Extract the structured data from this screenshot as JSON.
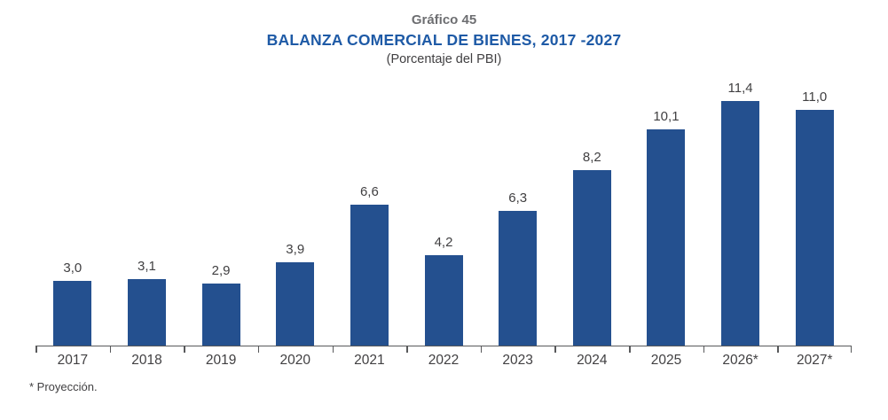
{
  "header": {
    "figure_label": "Gráfico 45",
    "title": "BALANZA COMERCIAL DE BIENES, 2017 -2027",
    "subtitle": "(Porcentaje del PBI)"
  },
  "footnote": "* Proyección.",
  "colors": {
    "bar": "#24508F",
    "title": "#1E5AA6",
    "figure_label": "#6D6E71",
    "text": "#414042",
    "axis": "#58595B"
  },
  "chart_data": {
    "type": "bar",
    "title": "BALANZA COMERCIAL DE BIENES, 2017 -2027",
    "subtitle": "(Porcentaje del PBI)",
    "categories": [
      "2017",
      "2018",
      "2019",
      "2020",
      "2021",
      "2022",
      "2023",
      "2024",
      "2025",
      "2026*",
      "2027*"
    ],
    "values": [
      3.0,
      3.1,
      2.9,
      3.9,
      6.6,
      4.2,
      6.3,
      8.2,
      10.1,
      11.4,
      11.0
    ],
    "value_labels": [
      "3,0",
      "3,1",
      "2,9",
      "3,9",
      "6,6",
      "4,2",
      "6,3",
      "8,2",
      "10,1",
      "11,4",
      "11,0"
    ],
    "xlabel": "",
    "ylabel": "Porcentaje del PBI",
    "ylim": [
      0,
      12
    ],
    "grid": false,
    "legend": "none",
    "data_labels": true,
    "footnote": "* Proyección."
  }
}
